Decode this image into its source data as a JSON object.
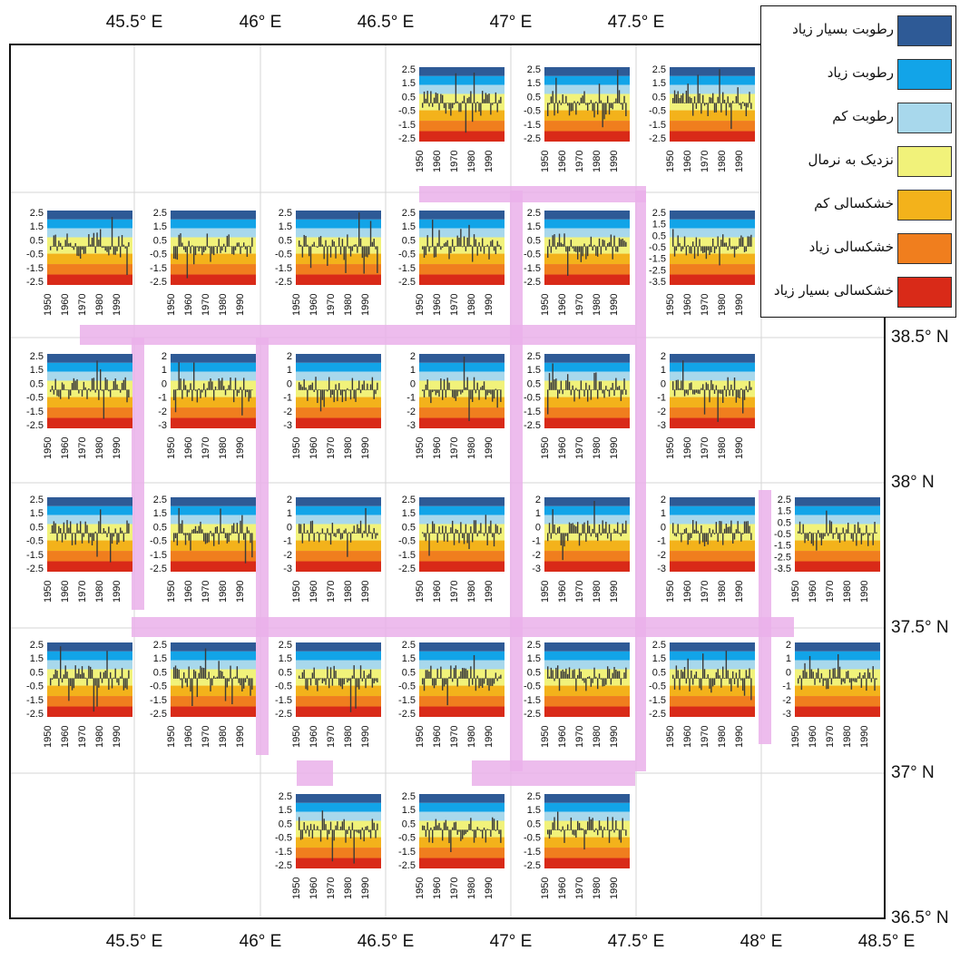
{
  "map": {
    "top_ticks": [
      "45.5° E",
      "46° E",
      "46.5° E",
      "47° E",
      "47.5° E"
    ],
    "bottom_ticks": [
      "45.5° E",
      "46° E",
      "46.5° E",
      "47° E",
      "47.5° E",
      "48° E",
      "48.5° E"
    ],
    "right_ticks": [
      "38.5° N",
      "38° N",
      "37.5° N",
      "37° N",
      "36.5° N"
    ]
  },
  "legend": {
    "items": [
      {
        "label": "رطوبت بسیار زیاد",
        "color": "#2e5a96"
      },
      {
        "label": "رطوبت زیاد",
        "color": "#12a4e8"
      },
      {
        "label": "رطوبت کم",
        "color": "#a8d8ec"
      },
      {
        "label": "نزدیک به نرمال",
        "color": "#f1f27a"
      },
      {
        "label": "خشکسالی کم",
        "color": "#f3b21b"
      },
      {
        "label": "خشکسالی زیاد",
        "color": "#f07e1e"
      },
      {
        "label": "خشکسالی بسیار زیاد",
        "color": "#d92a18"
      }
    ]
  },
  "chart_data": {
    "type": "bar",
    "description_scale_a": [
      "2.5",
      "1.5",
      "0.5",
      "-0.5",
      "-1.5",
      "-2.5"
    ],
    "description_scale_b": [
      "2.5",
      "1.5",
      "0.5",
      "-0.5",
      "-1.5",
      "-2.5",
      "-3.5"
    ],
    "description_scale_c": [
      "2",
      "1",
      "0",
      "-1",
      "-2",
      "-3"
    ],
    "x_ticks": [
      "1950",
      "1960",
      "1970",
      "1980",
      "1990"
    ],
    "grid_panels": [
      {
        "row": 0,
        "col": 3,
        "scale": "a"
      },
      {
        "row": 0,
        "col": 4,
        "scale": "a"
      },
      {
        "row": 0,
        "col": 5,
        "scale": "a"
      },
      {
        "row": 1,
        "col": 0,
        "scale": "a"
      },
      {
        "row": 1,
        "col": 1,
        "scale": "a"
      },
      {
        "row": 1,
        "col": 2,
        "scale": "a"
      },
      {
        "row": 1,
        "col": 3,
        "scale": "a"
      },
      {
        "row": 1,
        "col": 4,
        "scale": "a"
      },
      {
        "row": 1,
        "col": 5,
        "scale": "b"
      },
      {
        "row": 2,
        "col": 0,
        "scale": "a"
      },
      {
        "row": 2,
        "col": 1,
        "scale": "c"
      },
      {
        "row": 2,
        "col": 2,
        "scale": "c"
      },
      {
        "row": 2,
        "col": 3,
        "scale": "c"
      },
      {
        "row": 2,
        "col": 4,
        "scale": "a"
      },
      {
        "row": 2,
        "col": 5,
        "scale": "c"
      },
      {
        "row": 3,
        "col": 0,
        "scale": "a"
      },
      {
        "row": 3,
        "col": 1,
        "scale": "a"
      },
      {
        "row": 3,
        "col": 2,
        "scale": "c"
      },
      {
        "row": 3,
        "col": 3,
        "scale": "a"
      },
      {
        "row": 3,
        "col": 4,
        "scale": "c"
      },
      {
        "row": 3,
        "col": 5,
        "scale": "c"
      },
      {
        "row": 3,
        "col": 6,
        "scale": "b"
      },
      {
        "row": 4,
        "col": 0,
        "scale": "a"
      },
      {
        "row": 4,
        "col": 1,
        "scale": "a"
      },
      {
        "row": 4,
        "col": 2,
        "scale": "a"
      },
      {
        "row": 4,
        "col": 3,
        "scale": "a"
      },
      {
        "row": 4,
        "col": 4,
        "scale": "a"
      },
      {
        "row": 4,
        "col": 5,
        "scale": "a"
      },
      {
        "row": 4,
        "col": 6,
        "scale": "c"
      },
      {
        "row": 5,
        "col": 2,
        "scale": "a"
      },
      {
        "row": 5,
        "col": 3,
        "scale": "a"
      },
      {
        "row": 5,
        "col": 4,
        "scale": "a"
      }
    ]
  }
}
